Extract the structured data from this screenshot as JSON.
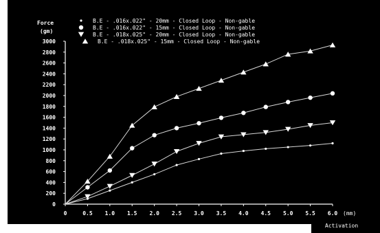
{
  "chart_data": {
    "type": "line",
    "ylabel": "Force",
    "yunit": "(gm)",
    "xunit": "(mm)",
    "xlabel": "Activation",
    "xlim": [
      0,
      6.0
    ],
    "ylim": [
      0,
      3000
    ],
    "x_ticks": [
      "0",
      "0.5",
      "1.0",
      "1.5",
      "2.0",
      "2.5",
      "3.0",
      "3.5",
      "4.0",
      "4.5",
      "5.0",
      "5.5",
      "6.0"
    ],
    "y_ticks": [
      "3000",
      "2800",
      "2600",
      "2400",
      "2200",
      "2000",
      "1800",
      "1600",
      "1400",
      "1200",
      "1000",
      "800",
      "600",
      "400",
      "200",
      "0"
    ],
    "grid": false,
    "legend_position": "top-left",
    "background": "#000000",
    "foreground": "#ffffff",
    "x": [
      0,
      0.5,
      1.0,
      1.5,
      2.0,
      2.5,
      3.0,
      3.5,
      4.0,
      4.5,
      5.0,
      5.5,
      6.0
    ],
    "series": [
      {
        "name": "B.E - .016x.022\" - 20mm - Closed Loop - Non-gable",
        "marker": "small-dot",
        "values": [
          0,
          100,
          250,
          400,
          550,
          720,
          830,
          930,
          980,
          1020,
          1050,
          1080,
          1120
        ]
      },
      {
        "name": "B.E - .016x.022\" - 15mm - Closed Loop - Non-gable",
        "marker": "circle",
        "values": [
          0,
          310,
          620,
          1030,
          1270,
          1400,
          1490,
          1590,
          1680,
          1790,
          1880,
          1960,
          2040
        ]
      },
      {
        "name": "B.E - .018x.025\" - 20mm - Closed Loop - Non-gable",
        "marker": "triangle-down",
        "values": [
          0,
          140,
          330,
          530,
          740,
          970,
          1120,
          1240,
          1280,
          1320,
          1380,
          1450,
          1500
        ]
      },
      {
        "name": "B.E - .018x.025\" - 15mm - Closed Loop - Non-gable",
        "marker": "triangle-up",
        "values": [
          0,
          420,
          880,
          1450,
          1790,
          1980,
          2130,
          2280,
          2430,
          2580,
          2760,
          2820,
          2930
        ]
      }
    ]
  }
}
